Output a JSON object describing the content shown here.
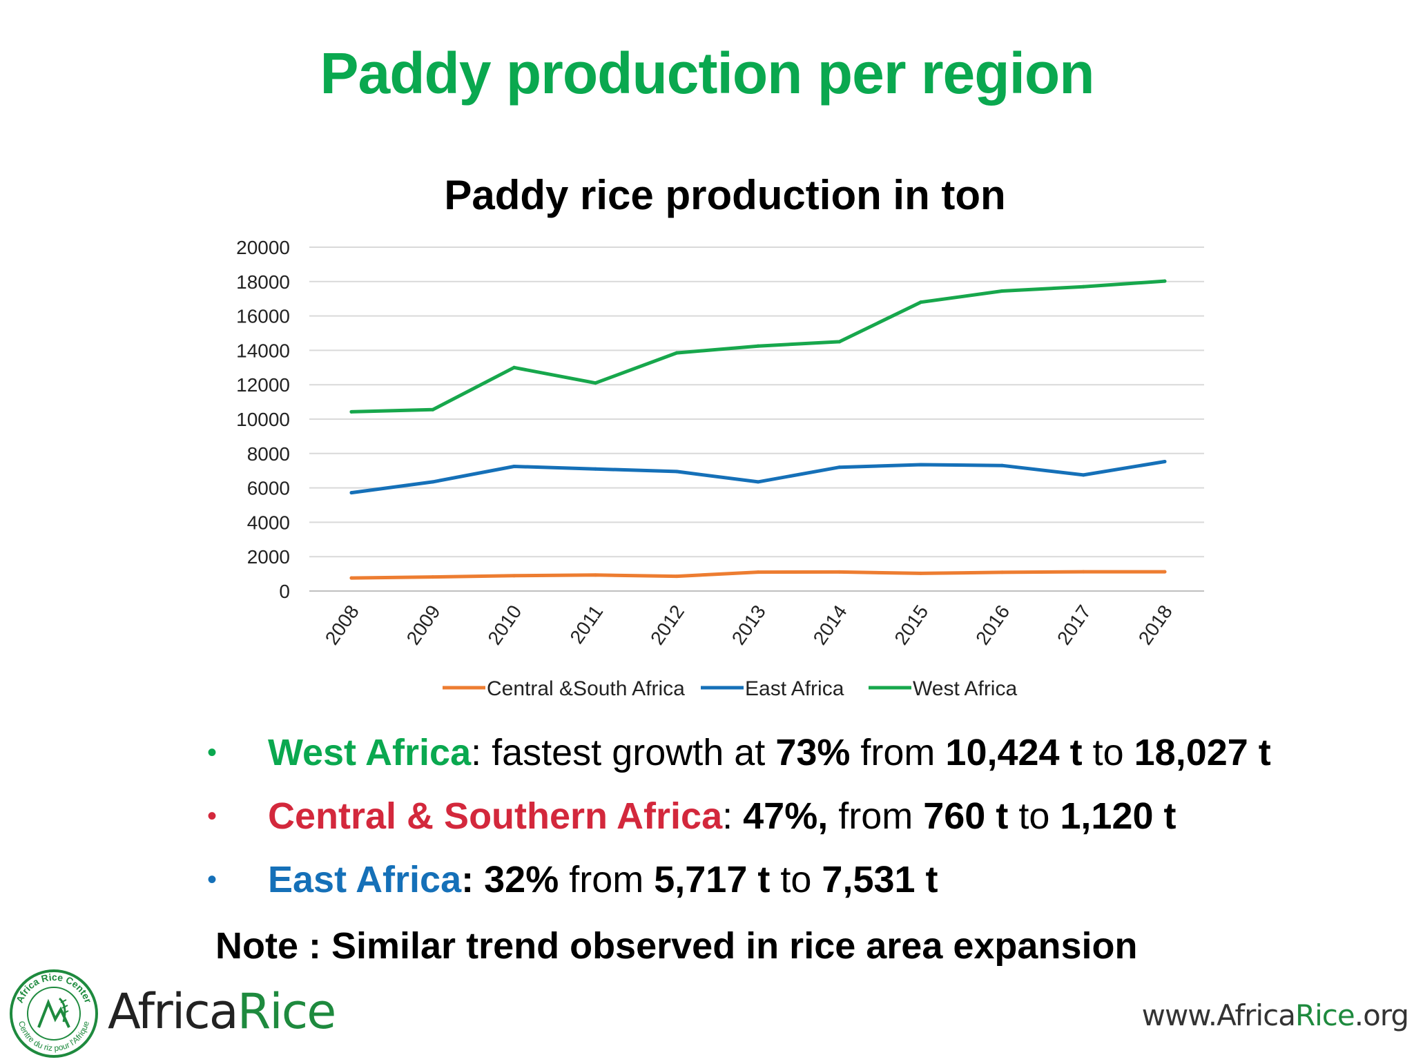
{
  "slide": {
    "title": "Paddy production per region",
    "colors": {
      "green": "#0aa84f",
      "red": "#d3283c",
      "blue": "#1570b8"
    }
  },
  "chart_data": {
    "type": "line",
    "title": "Paddy rice production in ton",
    "categories": [
      "2008",
      "2009",
      "2010",
      "2011",
      "2012",
      "2013",
      "2014",
      "2015",
      "2016",
      "2017",
      "2018"
    ],
    "ylim": [
      0,
      20000
    ],
    "yticks": [
      "0",
      "2000",
      "4000",
      "6000",
      "8000",
      "10000",
      "12000",
      "14000",
      "16000",
      "18000",
      "20000"
    ],
    "grid": true,
    "legend_position": "bottom",
    "series": [
      {
        "name": "Central &South Africa",
        "color": "#ed7d31",
        "values": [
          760,
          820,
          890,
          930,
          860,
          1100,
          1110,
          1030,
          1090,
          1120,
          1120
        ]
      },
      {
        "name": "East Africa",
        "color": "#1570b8",
        "values": [
          5717,
          6350,
          7250,
          7100,
          6950,
          6350,
          7200,
          7350,
          7300,
          6750,
          7531
        ]
      },
      {
        "name": "West Africa",
        "color": "#17a74c",
        "values": [
          10424,
          10550,
          13000,
          12100,
          13850,
          14250,
          14500,
          16800,
          17450,
          17700,
          18027
        ]
      }
    ]
  },
  "bullets": [
    {
      "dot": "•",
      "color": "#0aa84f",
      "region": "West Africa",
      "t1": ": fastest growth at ",
      "pct": "73%",
      "t2": " from ",
      "from": "10,424 t",
      "t3": " to ",
      "to": "18,027 t"
    },
    {
      "dot": "•",
      "color": "#d3283c",
      "region": "Central & Southern Africa",
      "t1": ": ",
      "pct": "47%,",
      "t2": " from ",
      "from": "760 t",
      "t3": " to ",
      "to": "1,120 t"
    },
    {
      "dot": "•",
      "color": "#1570b8",
      "region": "East Africa",
      "t1": ": ",
      "pct": "32%",
      "t2": " from ",
      "from": "5,717 t",
      "t3": " to ",
      "to": "7,531 t"
    }
  ],
  "note": "Note : Similar trend observed in rice area expansion",
  "logo": {
    "name_part1": "Africa",
    "name_part2": "Rice",
    "seal_text_top": "Africa Rice Center",
    "seal_text_bottom": "Centre du riz pour l'Afrique"
  },
  "website": {
    "part1": "www.Africa",
    "part2": "Rice",
    "part3": ".org"
  }
}
